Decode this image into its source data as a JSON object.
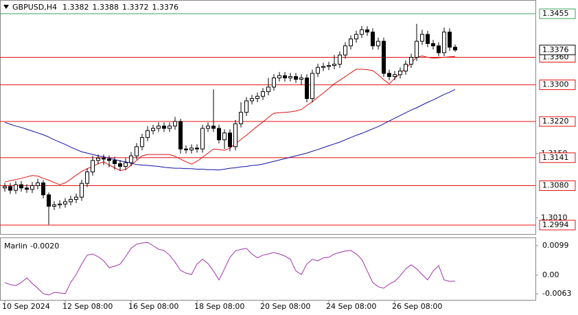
{
  "chart_data": {
    "type": "candlestick",
    "title": "GBPUSD,H4",
    "open": [
      1.3075,
      1.3078,
      1.307,
      1.3082,
      1.3075,
      1.3072,
      1.308,
      1.3086,
      1.306,
      1.3035,
      1.3038,
      1.304,
      1.3045,
      1.305,
      1.3055,
      1.3085,
      1.311,
      1.3135,
      1.314,
      1.3138,
      1.3135,
      1.3128,
      1.3122,
      1.313,
      1.3145,
      1.3165,
      1.3185,
      1.32,
      1.3205,
      1.321,
      1.3205,
      1.321,
      1.322,
      1.316,
      1.3158,
      1.3162,
      1.316,
      1.3205,
      1.321,
      1.3205,
      1.318,
      1.3195,
      1.3165,
      1.3215,
      1.324,
      1.3265,
      1.327,
      1.3275,
      1.3285,
      1.3295,
      1.3315,
      1.332,
      1.3315,
      1.3318,
      1.3312,
      1.3315,
      1.327,
      1.3325,
      1.3338,
      1.334,
      1.3342,
      1.3345,
      1.3365,
      1.3385,
      1.34,
      1.341,
      1.342,
      1.3415,
      1.3385,
      1.3395,
      1.3325,
      1.3318,
      1.3322,
      1.333,
      1.3345,
      1.336,
      1.3395,
      1.341,
      1.339,
      1.3385,
      1.337,
      1.3415,
      1.3382
    ],
    "high": [
      1.3086,
      1.3086,
      1.309,
      1.309,
      1.3083,
      1.3088,
      1.3095,
      1.3092,
      1.3065,
      1.3046,
      1.3048,
      1.3053,
      1.3058,
      1.3063,
      1.3093,
      1.3118,
      1.3145,
      1.3148,
      1.3148,
      1.3146,
      1.3143,
      1.3136,
      1.314,
      1.3153,
      1.3173,
      1.3193,
      1.321,
      1.3213,
      1.3218,
      1.3218,
      1.3218,
      1.323,
      1.3226,
      1.3168,
      1.317,
      1.317,
      1.3213,
      1.3218,
      1.329,
      1.3213,
      1.3203,
      1.3203,
      1.3223,
      1.3262,
      1.3273,
      1.3278,
      1.3283,
      1.3293,
      1.3315,
      1.3323,
      1.3328,
      1.3328,
      1.3326,
      1.3326,
      1.3323,
      1.3323,
      1.3333,
      1.3346,
      1.3348,
      1.335,
      1.3365,
      1.3373,
      1.3393,
      1.3408,
      1.3418,
      1.3428,
      1.3428,
      1.3423,
      1.3403,
      1.3403,
      1.3333,
      1.333,
      1.3338,
      1.3353,
      1.3368,
      1.3433,
      1.342,
      1.3418,
      1.3398,
      1.3393,
      1.3425,
      1.3423,
      1.3388
    ],
    "low": [
      1.3067,
      1.3062,
      1.3062,
      1.3067,
      1.3064,
      1.3064,
      1.3072,
      1.3052,
      1.2995,
      1.3027,
      1.303,
      1.3032,
      1.3037,
      1.3042,
      1.3047,
      1.3077,
      1.3102,
      1.3127,
      1.3125,
      1.312,
      1.3115,
      1.3112,
      1.3114,
      1.3122,
      1.3137,
      1.3157,
      1.3177,
      1.3192,
      1.3197,
      1.3197,
      1.3197,
      1.3202,
      1.315,
      1.315,
      1.315,
      1.3152,
      1.3152,
      1.3197,
      1.3197,
      1.3172,
      1.316,
      1.3155,
      1.3157,
      1.3207,
      1.3232,
      1.3257,
      1.3262,
      1.3267,
      1.3277,
      1.3287,
      1.3307,
      1.3307,
      1.3307,
      1.3304,
      1.33,
      1.3262,
      1.3262,
      1.3317,
      1.333,
      1.3332,
      1.3334,
      1.3337,
      1.3357,
      1.3377,
      1.3392,
      1.3402,
      1.3407,
      1.3377,
      1.3377,
      1.3317,
      1.331,
      1.331,
      1.3314,
      1.3322,
      1.3337,
      1.3352,
      1.3387,
      1.3382,
      1.3377,
      1.3362,
      1.3362,
      1.3374,
      1.3372
    ],
    "close": [
      1.3078,
      1.307,
      1.3082,
      1.3075,
      1.3072,
      1.308,
      1.3086,
      1.306,
      1.3035,
      1.3038,
      1.304,
      1.3045,
      1.305,
      1.3055,
      1.3085,
      1.311,
      1.3135,
      1.314,
      1.3138,
      1.3135,
      1.3128,
      1.3122,
      1.313,
      1.3145,
      1.3165,
      1.3185,
      1.32,
      1.3205,
      1.321,
      1.3205,
      1.321,
      1.322,
      1.316,
      1.3158,
      1.3162,
      1.316,
      1.3205,
      1.321,
      1.3205,
      1.318,
      1.3195,
      1.3165,
      1.3215,
      1.324,
      1.3265,
      1.327,
      1.3275,
      1.3285,
      1.3295,
      1.3315,
      1.332,
      1.3315,
      1.3318,
      1.3312,
      1.3315,
      1.327,
      1.3325,
      1.3338,
      1.334,
      1.3342,
      1.3345,
      1.3365,
      1.3385,
      1.34,
      1.341,
      1.342,
      1.3415,
      1.3385,
      1.3395,
      1.3325,
      1.3318,
      1.3322,
      1.333,
      1.3345,
      1.336,
      1.3395,
      1.341,
      1.339,
      1.3385,
      1.337,
      1.3415,
      1.3382,
      1.3376
    ],
    "ylim": [
      1.2976,
      1.3485
    ],
    "yticks": [
      {
        "value": 1.301,
        "label": "1.3010"
      },
      {
        "value": 1.315,
        "label": "1.3150"
      }
    ],
    "xticks": [
      {
        "value": 0,
        "label": "10 Sep 2024"
      },
      {
        "value": 11,
        "label": "12 Sep 08:00"
      },
      {
        "value": 23,
        "label": "16 Sep 08:00"
      },
      {
        "value": 35,
        "label": "18 Sep 08:00"
      },
      {
        "value": 47,
        "label": "20 Sep 08:00"
      },
      {
        "value": 59,
        "label": "24 Sep 08:00"
      },
      {
        "value": 71,
        "label": "26 Sep 08:00"
      }
    ],
    "lines": [
      {
        "color": "#e01010",
        "values": [
          1.3088,
          1.3091,
          1.3093,
          1.3096,
          1.3099,
          1.3102,
          1.3101,
          1.3096,
          1.3092,
          1.3087,
          1.3082,
          1.3086,
          1.3094,
          1.3103,
          1.3111,
          1.3117,
          1.3122,
          1.3128,
          1.3132,
          1.3125,
          1.3119,
          1.3113,
          1.3115,
          1.3125,
          1.3135,
          1.3145,
          1.3148,
          1.3148,
          1.3148,
          1.3148,
          1.3148,
          1.3144,
          1.3138,
          1.3132,
          1.3127,
          1.3133,
          1.3142,
          1.3151,
          1.316,
          1.3159,
          1.3157,
          1.3162,
          1.3171,
          1.3181,
          1.319,
          1.32,
          1.321,
          1.3219,
          1.3229,
          1.3238,
          1.3239,
          1.324,
          1.3241,
          1.3243,
          1.3246,
          1.3255,
          1.3263,
          1.3273,
          1.3282,
          1.3292,
          1.3302,
          1.331,
          1.3318,
          1.3326,
          1.3334,
          1.3334,
          1.3333,
          1.3331,
          1.3322,
          1.3311,
          1.3302,
          1.3314,
          1.3325,
          1.3336,
          1.3348,
          1.336,
          1.3363,
          1.336,
          1.3358,
          1.3359,
          1.336,
          1.3361,
          1.3362
        ]
      },
      {
        "color": "#1010a8",
        "values": [
          1.3218,
          1.3214,
          1.321,
          1.3207,
          1.3203,
          1.3199,
          1.3195,
          1.3191,
          1.3186,
          1.318,
          1.3175,
          1.317,
          1.3164,
          1.3159,
          1.3154,
          1.3151,
          1.3148,
          1.3145,
          1.3143,
          1.314,
          1.3137,
          1.3134,
          1.3132,
          1.3129,
          1.3126,
          1.3125,
          1.3124,
          1.3123,
          1.3122,
          1.312,
          1.3119,
          1.3118,
          1.3118,
          1.3117,
          1.3117,
          1.3116,
          1.3116,
          1.3115,
          1.3115,
          1.3114,
          1.3116,
          1.3118,
          1.3119,
          1.3121,
          1.3122,
          1.3124,
          1.3125,
          1.3127,
          1.313,
          1.3133,
          1.3136,
          1.3139,
          1.3142,
          1.3145,
          1.3148,
          1.3151,
          1.3155,
          1.3159,
          1.3163,
          1.3167,
          1.3171,
          1.3175,
          1.318,
          1.3185,
          1.319,
          1.3194,
          1.3199,
          1.3204,
          1.3209,
          1.3215,
          1.3221,
          1.3227,
          1.3233,
          1.3239,
          1.3245,
          1.325,
          1.3256,
          1.3262,
          1.3267,
          1.3273,
          1.3279,
          1.3284,
          1.329
        ]
      }
    ],
    "levels": [
      {
        "value": 1.3455,
        "color": "#3aa05a"
      },
      {
        "value": 1.336,
        "label": "1.3360",
        "color": "#e01010"
      },
      {
        "value": 1.33,
        "label": "1.3300",
        "color": "#e01010"
      },
      {
        "value": 1.322,
        "label": "1.3220",
        "color": "#e01010"
      },
      {
        "value": 1.3141,
        "color": "#e01010"
      },
      {
        "value": 1.308,
        "label": "1.3080",
        "color": "#e01010"
      },
      {
        "value": 1.2994,
        "color": "#e01010"
      }
    ],
    "indicator": {
      "name": "Marlin",
      "current_label": "-0.0020",
      "color": "#a030a8",
      "ylim": [
        -0.0081,
        0.0122
      ],
      "yticks": [
        0.0099,
        {
          "value": 0,
          "label": "0.00"
        },
        -0.0063
      ],
      "values": [
        -0.0025,
        -0.0032,
        -0.0035,
        -0.0025,
        -0.0009,
        -0.0028,
        -0.0044,
        -0.0062,
        -0.0067,
        -0.0058,
        -0.006,
        -0.0062,
        -0.0025,
        0.0002,
        0.0037,
        0.0067,
        0.0071,
        0.0062,
        0.0048,
        0.0025,
        0.003,
        0.0037,
        0.0062,
        0.009,
        0.0104,
        0.0108,
        0.011,
        0.0099,
        0.0087,
        0.0083,
        0.0067,
        0.0044,
        0.0016,
        0.0007,
        0.0002,
        0.0037,
        0.0053,
        0.0039,
        0.0014,
        -0.0016,
        0.0021,
        0.006,
        0.0081,
        0.0087,
        0.009,
        0.0071,
        0.0058,
        0.0067,
        0.0071,
        0.0076,
        0.0071,
        0.0064,
        0.0053,
        0.0014,
        0.0002,
        0.0037,
        0.0053,
        0.0048,
        0.0058,
        0.006,
        0.0071,
        0.0076,
        0.0081,
        0.0083,
        0.0071,
        0.0053,
        0.0014,
        -0.0025,
        -0.0039,
        -0.0044,
        -0.003,
        -0.0021,
        -0.0002,
        0.0021,
        0.0035,
        0.0021,
        0.0002,
        -0.0016,
        0.0014,
        0.0032,
        -0.0016,
        -0.0021,
        -0.002
      ]
    }
  }
}
